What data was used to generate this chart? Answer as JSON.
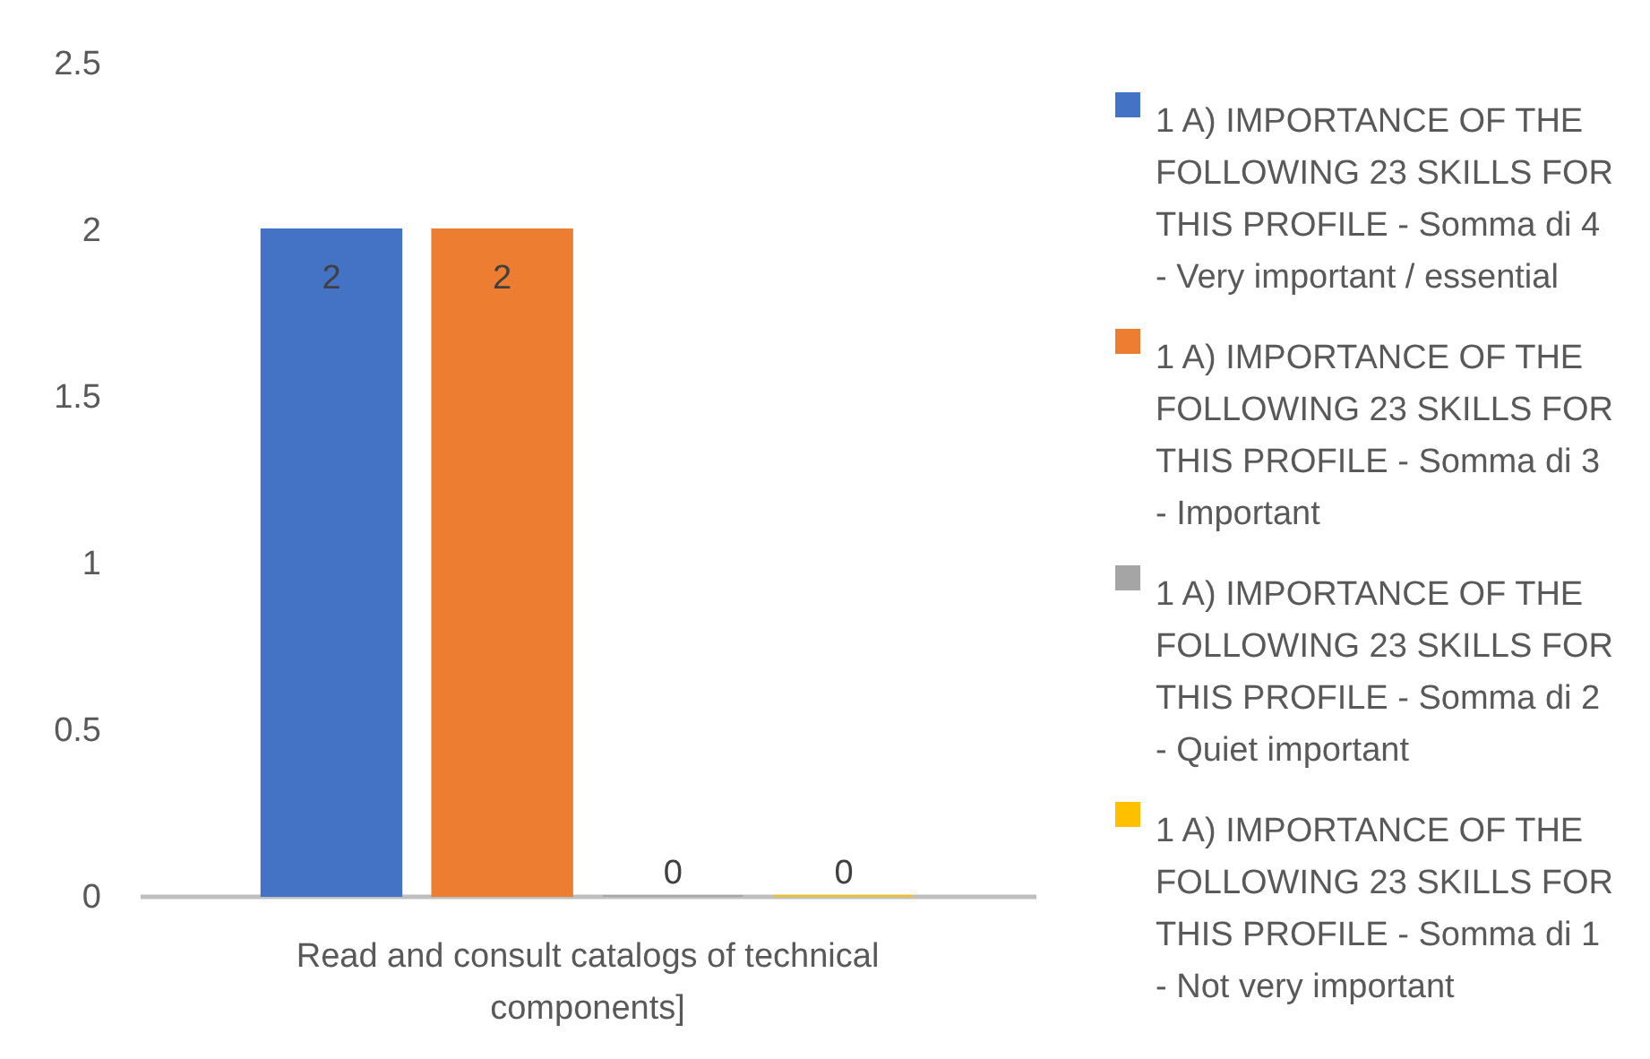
{
  "chart_data": {
    "type": "bar",
    "categories": [
      "Read and consult catalogs of technical components]"
    ],
    "series": [
      {
        "name": "1 A) IMPORTANCE OF THE FOLLOWING 23 SKILLS FOR THIS PROFILE  - Somma di 4 - Very important / essential",
        "color": "#4472c4",
        "values": [
          2
        ]
      },
      {
        "name": "1 A) IMPORTANCE OF THE FOLLOWING 23 SKILLS FOR THIS PROFILE  - Somma di 3 - Important",
        "color": "#ed7d31",
        "values": [
          2
        ]
      },
      {
        "name": "1 A) IMPORTANCE OF THE FOLLOWING 23 SKILLS FOR THIS PROFILE  - Somma di 2 - Quiet important",
        "color": "#a5a5a5",
        "values": [
          0
        ]
      },
      {
        "name": "1 A) IMPORTANCE OF THE FOLLOWING 23 SKILLS FOR THIS PROFILE  - Somma di 1 - Not very important",
        "color": "#ffc000",
        "values": [
          0
        ]
      }
    ],
    "ylim": [
      0,
      2.5
    ],
    "yticks": [
      0,
      0.5,
      1,
      1.5,
      2,
      2.5
    ],
    "grid": false,
    "legend": "right",
    "data_labels": true
  }
}
